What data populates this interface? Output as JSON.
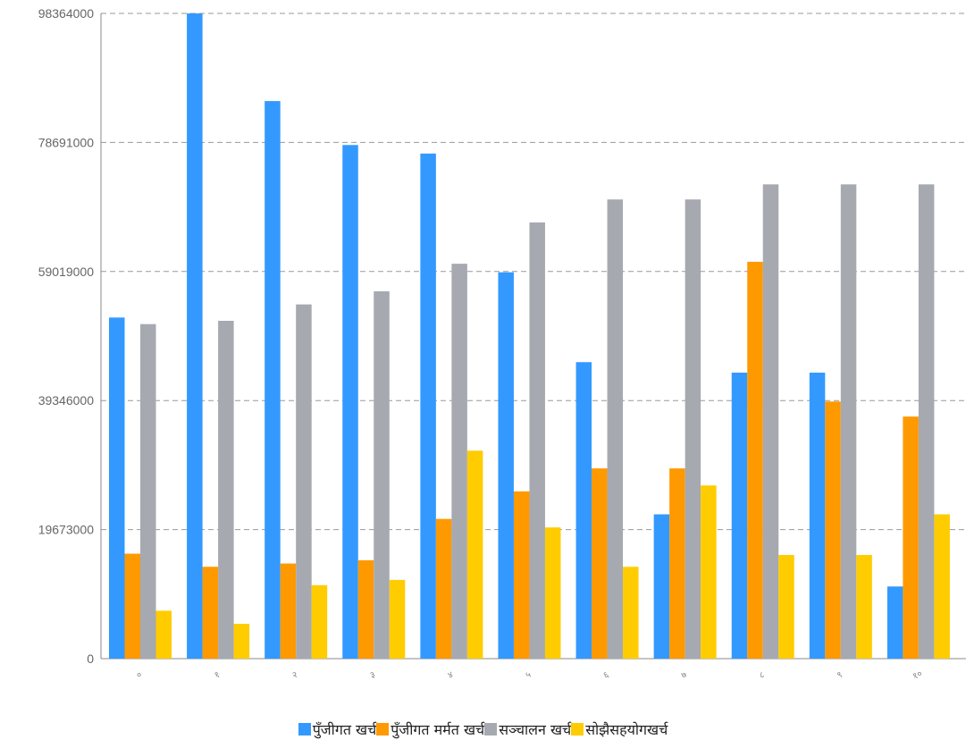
{
  "chart_data": {
    "type": "bar",
    "categories": [
      "०",
      "१",
      "२",
      "३",
      "४",
      "५",
      "६",
      "७",
      "८",
      "९",
      "१०"
    ],
    "series": [
      {
        "name": "पुँजीगत खर्च",
        "color": "#3399ff",
        "values": [
          52000000,
          98364000,
          85000000,
          78300000,
          77000000,
          58900000,
          45200000,
          22000000,
          43600000,
          43600000,
          11000000
        ]
      },
      {
        "name": "पुँजीगत मर्मत खर्च",
        "color": "#ff9900",
        "values": [
          16000000,
          14000000,
          14500000,
          15000000,
          21300000,
          25500000,
          29000000,
          29000000,
          60500000,
          39200000,
          36900000
        ]
      },
      {
        "name": "सञ्चालन खर्च",
        "color": "#a6a9b0",
        "values": [
          51000000,
          51500000,
          54000000,
          56000000,
          60200000,
          66500000,
          70000000,
          70000000,
          72300000,
          72300000,
          72300000
        ]
      },
      {
        "name": "सोझैसहयोगखर्च",
        "color": "#ffcc00",
        "values": [
          7300000,
          5300000,
          11200000,
          12000000,
          31700000,
          20000000,
          14000000,
          26400000,
          15800000,
          15800000,
          22000000
        ]
      }
    ],
    "yticks": [
      "0",
      "19673000",
      "39346000",
      "59019000",
      "78691000",
      "98364000"
    ],
    "ylim": [
      0,
      98364000
    ],
    "grid": true,
    "legend_position": "bottom"
  }
}
